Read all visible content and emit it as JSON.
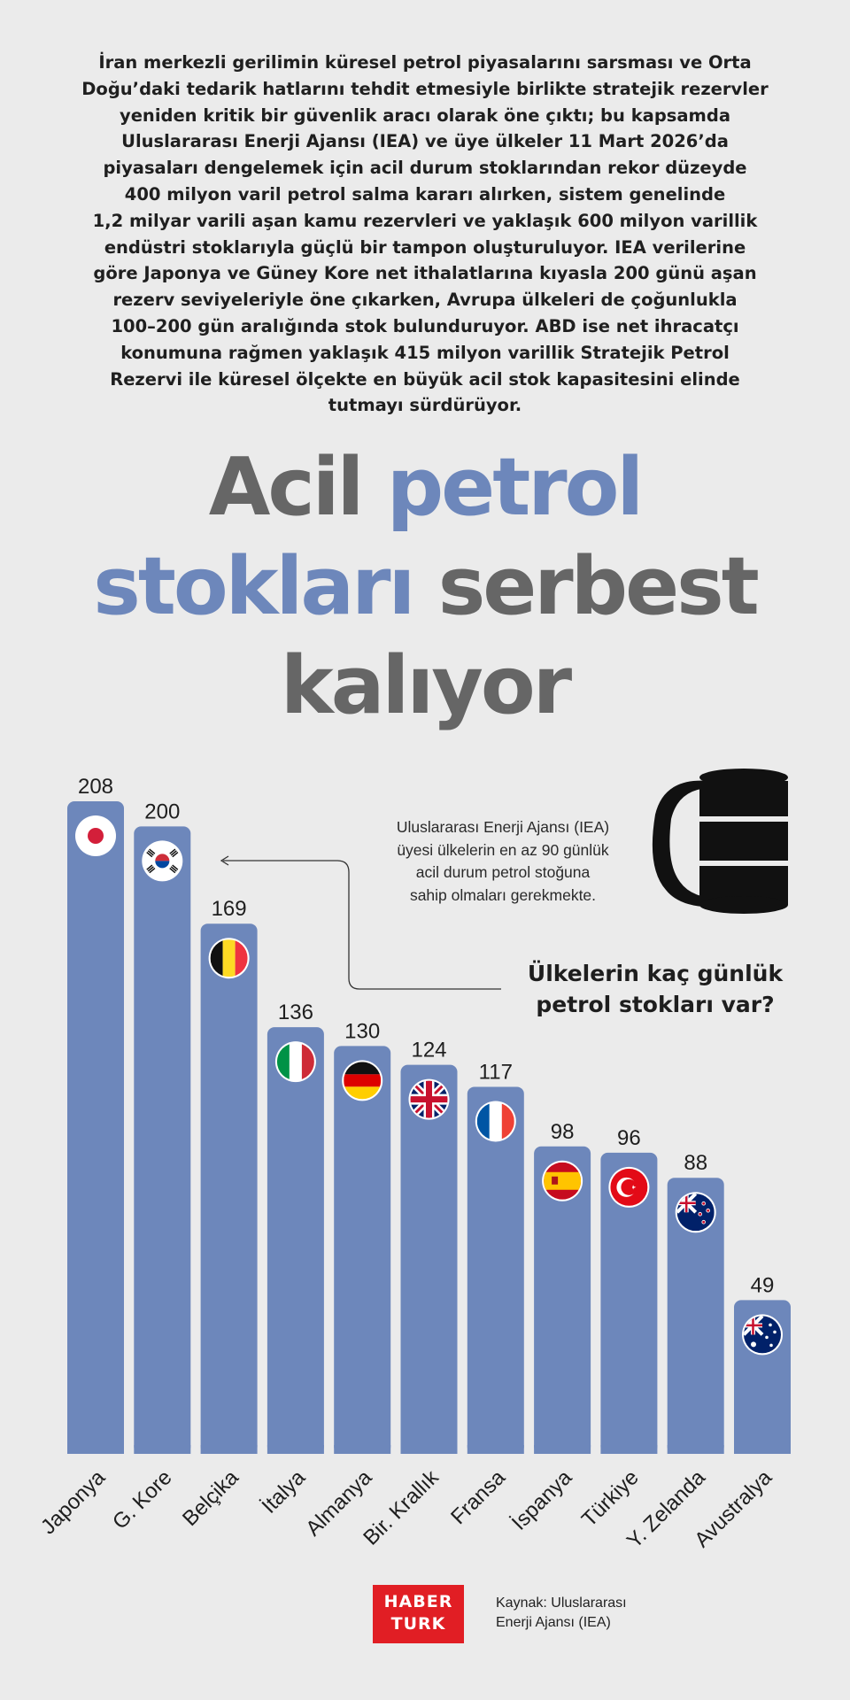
{
  "intro": "İran merkezli gerilimin küresel petrol piyasalarını sarsması ve Orta\nDoğu’daki tedarik hatlarını tehdit etmesiyle birlikte stratejik rezervler\nyeniden kritik bir güvenlik aracı olarak öne çıktı; bu kapsamda\nUluslararası Enerji Ajansı (IEA) ve üye ülkeler 11 Mart 2026’da\npiyasaları dengelemek için acil durum stoklarından rekor düzeyde\n400 milyon varil petrol salma kararı alırken, sistem genelinde\n1,2 milyar varili aşan kamu rezervleri ve yaklaşık 600 milyon varillik\nendüstri stoklarıyla güçlü bir tampon oluşturuluyor. IEA verilerine\ngöre Japonya ve Güney Kore net ithalatlarına kıyasla 200 günü aşan\nrezerv seviyeleriyle öne çıkarken, Avrupa ülkeleri de çoğunlukla\n100–200 gün aralığında stok bulunduruyor. ABD ise net ihracatçı\nkonumuna rağmen yaklaşık 415 milyon varillik Stratejik Petrol\nRezervi ile küresel ölçekte en büyük acil stok kapasitesini elinde\ntutmayı sürdürüyor.",
  "headline": {
    "line1_grey": "Acil ",
    "line1_blue": "petrol",
    "line2_blue": "stokları ",
    "line2_grey": "serbest",
    "line3_grey": "kalıyor"
  },
  "note": "Uluslararası Enerji Ajansı (IEA)\nüyesi ülkelerin en az 90 günlük\nacil durum petrol stoğuna\nsahip olmaları gerekmekte.",
  "question": "Ülkelerin kaç günlük\npetrol stokları var?",
  "logo": {
    "line1": "HABER",
    "line2": "TURK"
  },
  "source": "Kaynak: Uluslararası\nEnerji Ajansı (IEA)",
  "colors": {
    "bar": "#6d87bb",
    "background": "#ebebeb",
    "accent_red": "#e11e24"
  },
  "chart_data": {
    "type": "bar",
    "categories": [
      "Japonya",
      "G. Kore",
      "Belçika",
      "İtalya",
      "Almanya",
      "Bir. Krallık",
      "Fransa",
      "İspanya",
      "Türkiye",
      "Y. Zelanda",
      "Avustralya"
    ],
    "values": [
      208,
      200,
      169,
      136,
      130,
      124,
      117,
      98,
      96,
      88,
      49
    ],
    "flags": [
      "japan-flag-icon",
      "south-korea-flag-icon",
      "belgium-flag-icon",
      "italy-flag-icon",
      "germany-flag-icon",
      "uk-flag-icon",
      "france-flag-icon",
      "spain-flag-icon",
      "turkey-flag-icon",
      "new-zealand-flag-icon",
      "australia-flag-icon"
    ],
    "ylim": [
      0,
      208
    ],
    "grid": false,
    "xlabel": "",
    "ylabel": ""
  }
}
